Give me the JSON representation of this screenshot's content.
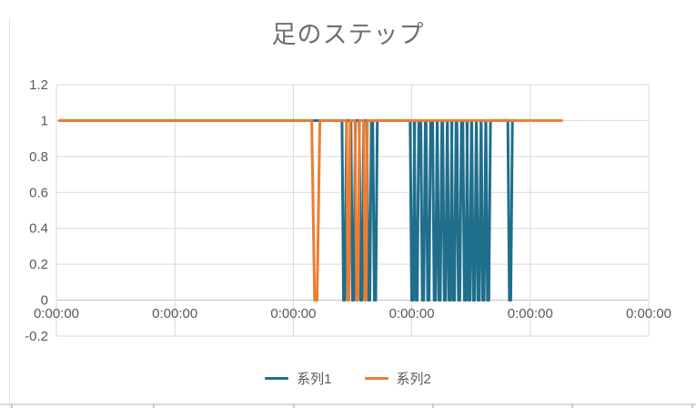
{
  "chart": {
    "title": "足のステップ",
    "legend_items": [
      {
        "label": "系列1",
        "color": "#1F6E8C"
      },
      {
        "label": "系列2",
        "color": "#ED7D31"
      }
    ]
  },
  "chart_data": {
    "type": "line",
    "title": "足のステップ",
    "xlabel": "",
    "ylabel": "",
    "ylim": [
      -0.2,
      1.2
    ],
    "y_ticks": [
      1.2,
      1,
      0.8,
      0.6,
      0.4,
      0.2,
      0,
      -0.2
    ],
    "y_tick_labels": [
      "1.2",
      "1",
      "0.8",
      "0.6",
      "0.4",
      "0.2",
      "0",
      "-0.2"
    ],
    "x_tick_labels": [
      "0:00:00",
      "0:00:00",
      "0:00:00",
      "0:00:00",
      "0:00:00",
      "0:00:00"
    ],
    "grid": true,
    "gridline_color": "#D9D9D9",
    "zero_axis_color": "#BFBFBF",
    "legend_position": "bottom",
    "x_encoding": "fraction of x-axis width; series hold value 1 except V-dips to 0",
    "series": [
      {
        "name": "系列1",
        "color": "#1F6E8C",
        "baseline_value": 1,
        "dip_value": 0,
        "x_start": 0.005,
        "x_end": 0.774,
        "dips": [
          {
            "x": 0.486,
            "hw": 2.5
          },
          {
            "x": 0.501,
            "hw": 2.5
          },
          {
            "x": 0.515,
            "hw": 2.5
          },
          {
            "x": 0.528,
            "hw": 2.5
          },
          {
            "x": 0.538,
            "hw": 2.5
          },
          {
            "x": 0.601,
            "hw": 2.5
          },
          {
            "x": 0.608,
            "hw": 2.5
          },
          {
            "x": 0.619,
            "hw": 2.5
          },
          {
            "x": 0.628,
            "hw": 2.5
          },
          {
            "x": 0.639,
            "hw": 2.5
          },
          {
            "x": 0.647,
            "hw": 2.5
          },
          {
            "x": 0.656,
            "hw": 2.5
          },
          {
            "x": 0.664,
            "hw": 2.5
          },
          {
            "x": 0.671,
            "hw": 2.5
          },
          {
            "x": 0.68,
            "hw": 2.5
          },
          {
            "x": 0.69,
            "hw": 2.5
          },
          {
            "x": 0.697,
            "hw": 2.5
          },
          {
            "x": 0.705,
            "hw": 2.5
          },
          {
            "x": 0.713,
            "hw": 2.5
          },
          {
            "x": 0.721,
            "hw": 2.5
          },
          {
            "x": 0.729,
            "hw": 2.5
          },
          {
            "x": 0.766,
            "hw": 2.5
          }
        ]
      },
      {
        "name": "系列2",
        "color": "#ED7D31",
        "baseline_value": 1,
        "dip_value": 0,
        "x_start": 0.005,
        "x_end": 0.853,
        "dips": [
          {
            "x": 0.438,
            "hw": 4.5
          },
          {
            "x": 0.493,
            "hw": 2.0
          },
          {
            "x": 0.508,
            "hw": 2.5
          },
          {
            "x": 0.522,
            "hw": 2.0
          }
        ]
      }
    ]
  }
}
